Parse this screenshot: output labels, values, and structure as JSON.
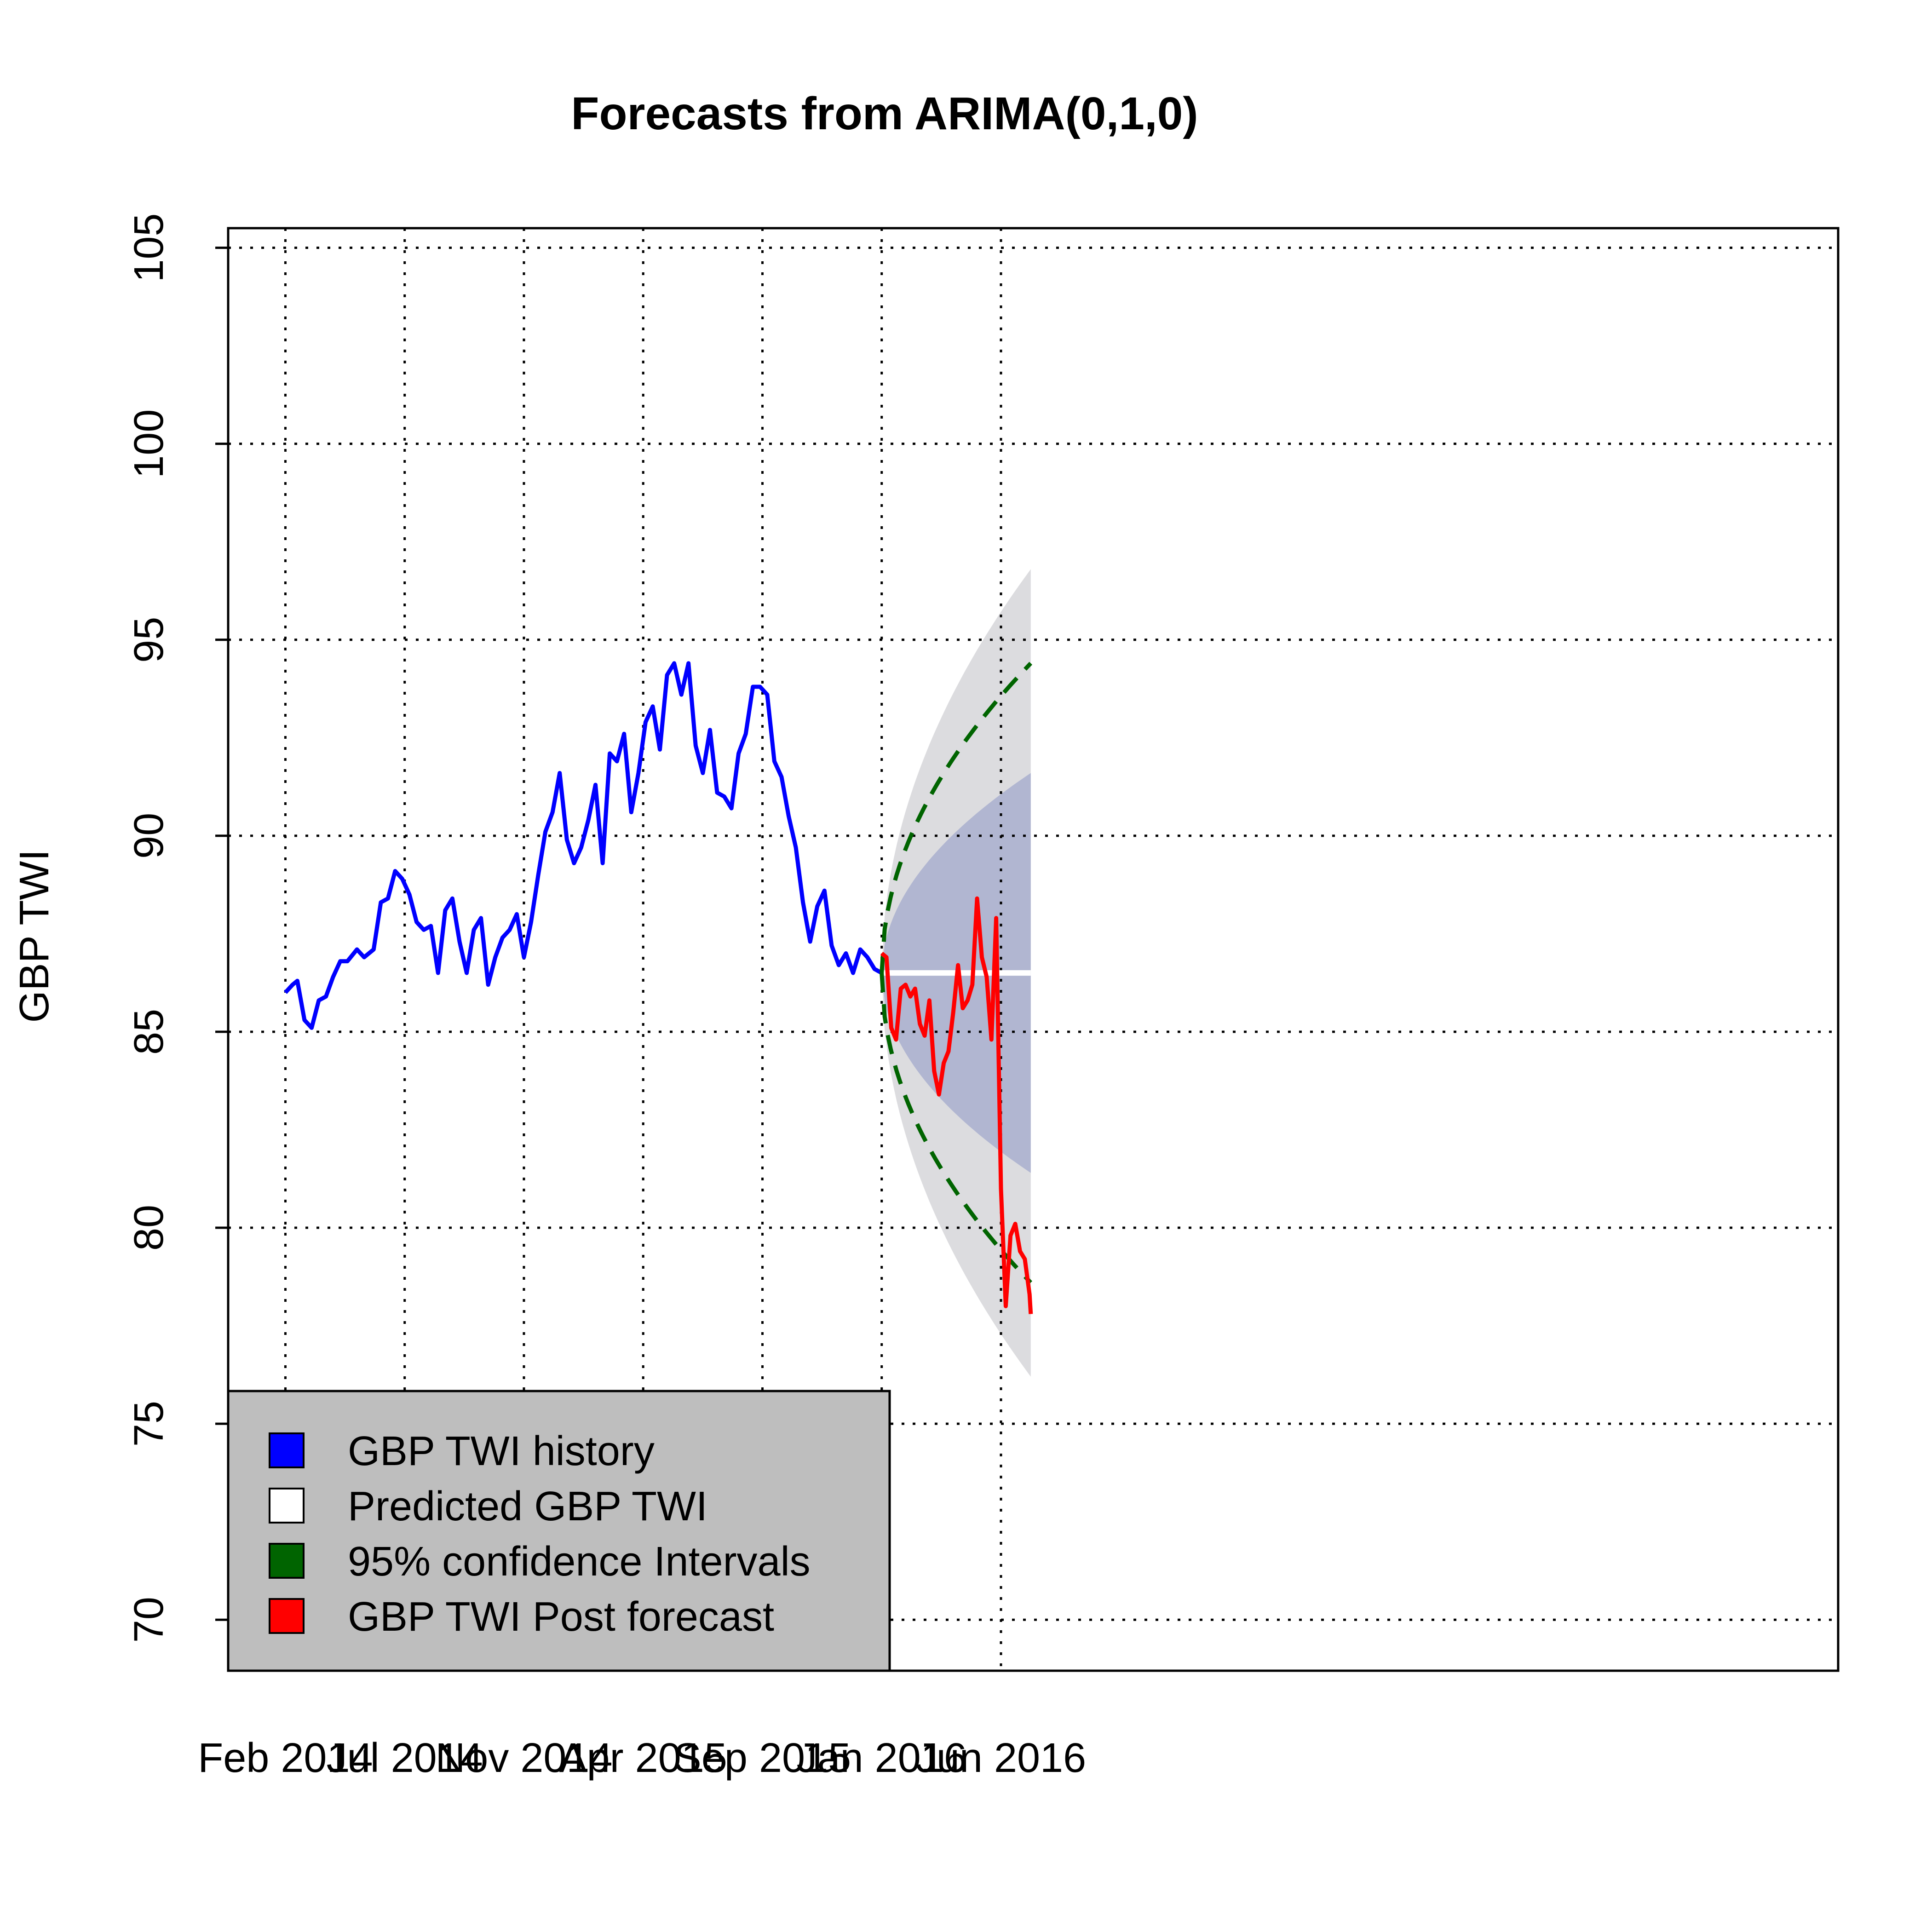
{
  "chart_data": {
    "type": "line",
    "title": "Forecasts from ARIMA(0,1,0)",
    "xlabel": "",
    "ylabel": "GBP TWI",
    "x_unit": "months since Feb 2014",
    "xlim": [
      -2.4,
      65.1
    ],
    "ylim": [
      68.7,
      105.5
    ],
    "yticks": [
      70,
      75,
      80,
      85,
      90,
      95,
      100,
      105
    ],
    "xticks": [
      {
        "label": "Feb 2014",
        "x": 0
      },
      {
        "label": "Jul 2014",
        "x": 5
      },
      {
        "label": "Nov 2014",
        "x": 10
      },
      {
        "label": "Apr 2015",
        "x": 15
      },
      {
        "label": "Sep 2015",
        "x": 20
      },
      {
        "label": "Jan 2016",
        "x": 25
      },
      {
        "label": "Jun 2016",
        "x": 30
      }
    ],
    "grid": true,
    "legend_position": "bottom-left",
    "forecast": {
      "start_x": 25.0,
      "end_x": 31.25,
      "point_forecast": 86.5,
      "ci80": {
        "upper_end": 91.6,
        "lower_end": 81.4
      },
      "ci95": {
        "upper_end": 96.8,
        "lower_end": 76.2
      },
      "dashed": {
        "upper_end": 94.4,
        "lower_end": 78.6
      }
    },
    "series": [
      {
        "name": "GBP TWI  history",
        "color": "#0000ff",
        "x": [
          0.0,
          0.3,
          0.5,
          0.8,
          1.1,
          1.4,
          1.7,
          2.0,
          2.3,
          2.6,
          3.0,
          3.3,
          3.7,
          4.0,
          4.3,
          4.6,
          4.9,
          5.2,
          5.5,
          5.8,
          6.1,
          6.4,
          6.7,
          7.0,
          7.3,
          7.6,
          7.9,
          8.2,
          8.5,
          8.8,
          9.1,
          9.4,
          9.7,
          10.0,
          10.3,
          10.6,
          10.9,
          11.2,
          11.5,
          11.8,
          12.1,
          12.4,
          12.7,
          13.0,
          13.3,
          13.6,
          13.9,
          14.2,
          14.5,
          14.8,
          15.1,
          15.4,
          15.7,
          16.0,
          16.3,
          16.6,
          16.9,
          17.2,
          17.5,
          17.8,
          18.1,
          18.4,
          18.7,
          19.0,
          19.3,
          19.6,
          19.9,
          20.2,
          20.5,
          20.8,
          21.1,
          21.4,
          21.7,
          22.0,
          22.3,
          22.6,
          22.9,
          23.2,
          23.5,
          23.8,
          24.1,
          24.4,
          24.7,
          25.0
        ],
        "values": [
          86.0,
          86.2,
          86.3,
          85.3,
          85.1,
          85.8,
          85.9,
          86.4,
          86.8,
          86.8,
          87.1,
          86.9,
          87.1,
          88.3,
          88.4,
          89.1,
          88.9,
          88.5,
          87.8,
          87.6,
          87.7,
          86.5,
          88.1,
          88.4,
          87.3,
          86.5,
          87.6,
          87.9,
          86.2,
          86.9,
          87.4,
          87.6,
          88.0,
          86.9,
          87.8,
          89.0,
          90.1,
          90.6,
          91.6,
          89.9,
          89.3,
          89.7,
          90.4,
          91.3,
          89.3,
          92.1,
          91.9,
          92.6,
          90.6,
          91.6,
          92.9,
          93.3,
          92.2,
          94.1,
          94.4,
          93.6,
          94.4,
          92.3,
          91.6,
          92.7,
          91.1,
          91.0,
          90.7,
          92.1,
          92.6,
          93.8,
          93.8,
          93.6,
          91.9,
          91.5,
          90.5,
          89.7,
          88.3,
          87.3,
          88.2,
          88.6,
          87.2,
          86.7,
          87.0,
          86.5,
          87.1,
          86.9,
          86.6,
          86.5
        ],
        "unit": "months"
      },
      {
        "name": "Predicted  GBP TWI",
        "color": "#ffffff",
        "x": [
          25.0,
          31.25
        ],
        "values": [
          86.5,
          86.5
        ]
      },
      {
        "name": "95% confidence Intervals",
        "color": "#006400",
        "style": "dashed"
      },
      {
        "name": "GBP TWI  Post forecast",
        "color": "#ff0000",
        "x": [
          25.0,
          25.2,
          25.4,
          25.6,
          25.8,
          26.0,
          26.2,
          26.4,
          26.6,
          26.8,
          27.0,
          27.2,
          27.4,
          27.6,
          27.8,
          28.0,
          28.2,
          28.4,
          28.6,
          28.8,
          29.0,
          29.2,
          29.4,
          29.6,
          29.8,
          30.0,
          30.2,
          30.4,
          30.6,
          30.8,
          31.0,
          31.2,
          31.25
        ],
        "values": [
          87.0,
          86.9,
          85.1,
          84.8,
          86.1,
          86.2,
          85.9,
          86.1,
          85.2,
          84.9,
          85.8,
          84.0,
          83.4,
          84.2,
          84.5,
          85.5,
          86.7,
          85.6,
          85.8,
          86.2,
          88.4,
          86.9,
          86.4,
          84.8,
          87.9,
          81.0,
          78.0,
          79.8,
          80.1,
          79.4,
          79.2,
          78.3,
          77.8
        ]
      }
    ]
  },
  "legend": {
    "items": [
      {
        "label": "GBP TWI  history",
        "color": "#0000ff"
      },
      {
        "label": "Predicted  GBP TWI",
        "color": "#ffffff"
      },
      {
        "label": "95% confidence Intervals",
        "color": "#006400"
      },
      {
        "label": "GBP TWI  Post forecast",
        "color": "#ff0000"
      }
    ],
    "background": "#bebebe"
  },
  "colors": {
    "ci95_fill": "#dcdcdf",
    "ci80_fill": "#b1b6d1"
  }
}
